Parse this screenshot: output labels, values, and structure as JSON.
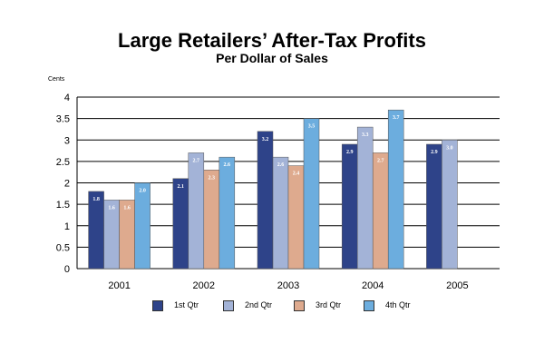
{
  "chart_data": {
    "type": "bar",
    "title": "Large Retailers’ After-Tax Profits",
    "subtitle": "Per Dollar of Sales",
    "ylabel": "Cents",
    "xlabel": "",
    "ylim": [
      0,
      4
    ],
    "yticks": [
      "0",
      "0.5",
      "1",
      "1.5",
      "2",
      "2.5",
      "3",
      "3.5",
      "4"
    ],
    "grid": true,
    "legend_position": "bottom",
    "categories": [
      "2001",
      "2002",
      "2003",
      "2004",
      "2005"
    ],
    "series": [
      {
        "name": "1st Qtr",
        "color": "#2e4389",
        "values": [
          1.8,
          2.1,
          3.2,
          2.9,
          2.9
        ],
        "labels": [
          "1.8",
          "2.1",
          "3.2",
          "2.9",
          "2.9"
        ]
      },
      {
        "name": "2nd Qtr",
        "color": "#a3b3d7",
        "values": [
          1.6,
          2.7,
          2.6,
          3.3,
          3.0
        ],
        "labels": [
          "1.6",
          "2.7",
          "2.6",
          "3.3",
          "3.0"
        ]
      },
      {
        "name": "3rd Qtr",
        "color": "#deaa8e",
        "values": [
          1.6,
          2.3,
          2.4,
          2.7,
          null
        ],
        "labels": [
          "1.6",
          "2.3",
          "2.4",
          "2.7",
          ""
        ]
      },
      {
        "name": "4th Qtr",
        "color": "#6cadde",
        "values": [
          2.0,
          2.6,
          3.5,
          3.7,
          null
        ],
        "labels": [
          "2.0",
          "2.6",
          "3.5",
          "3.7",
          ""
        ]
      }
    ]
  }
}
